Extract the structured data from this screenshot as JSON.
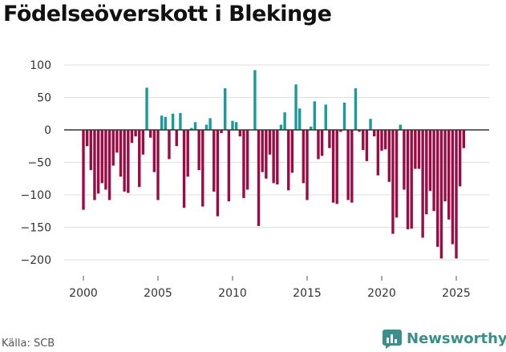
{
  "title": "Födelseöverskott i Blekinge",
  "source": "Källa: SCB",
  "brand": {
    "name": "Newsworthy",
    "icon": "bar-chart-logo-icon"
  },
  "colors": {
    "positive": "#1a9a9a",
    "negative": "#9b0c45",
    "brand": "#3a8e8c"
  },
  "chart_data": {
    "type": "bar",
    "title": "Födelseöverskott i Blekinge",
    "xlabel": "",
    "ylabel": "",
    "ylim": [
      -220,
      100
    ],
    "yticks": [
      100,
      50,
      0,
      -50,
      -100,
      -150,
      -200
    ],
    "yticklabels": [
      "100",
      "50",
      "0",
      "−50",
      "−100",
      "−150",
      "−200"
    ],
    "xticks": [
      2000,
      2005,
      2010,
      2015,
      2020,
      2025
    ],
    "xticklabels": [
      "2000",
      "2005",
      "2010",
      "2015",
      "2020",
      "2025"
    ],
    "grid": true,
    "legend": "none",
    "x": [
      2000.0,
      2000.25,
      2000.5,
      2000.75,
      2001.0,
      2001.25,
      2001.5,
      2001.75,
      2002.0,
      2002.25,
      2002.5,
      2002.75,
      2003.0,
      2003.25,
      2003.5,
      2003.75,
      2004.0,
      2004.25,
      2004.5,
      2004.75,
      2005.0,
      2005.25,
      2005.5,
      2005.75,
      2006.0,
      2006.25,
      2006.5,
      2006.75,
      2007.0,
      2007.25,
      2007.5,
      2007.75,
      2008.0,
      2008.25,
      2008.5,
      2008.75,
      2009.0,
      2009.25,
      2009.5,
      2009.75,
      2010.0,
      2010.25,
      2010.5,
      2010.75,
      2011.0,
      2011.25,
      2011.5,
      2011.75,
      2012.0,
      2012.25,
      2012.5,
      2012.75,
      2013.0,
      2013.25,
      2013.5,
      2013.75,
      2014.0,
      2014.25,
      2014.5,
      2014.75,
      2015.0,
      2015.25,
      2015.5,
      2015.75,
      2016.0,
      2016.25,
      2016.5,
      2016.75,
      2017.0,
      2017.25,
      2017.5,
      2017.75,
      2018.0,
      2018.25,
      2018.5,
      2018.75,
      2019.0,
      2019.25,
      2019.5,
      2019.75,
      2020.0,
      2020.25,
      2020.5,
      2020.75,
      2021.0,
      2021.25,
      2021.5,
      2021.75,
      2022.0,
      2022.25,
      2022.5,
      2022.75,
      2023.0,
      2023.25,
      2023.5,
      2023.75,
      2024.0,
      2024.25,
      2024.5,
      2024.75,
      2025.0,
      2025.25,
      2025.5
    ],
    "values": [
      -123,
      -25,
      -62,
      -108,
      -98,
      -82,
      -92,
      -108,
      -55,
      -35,
      -72,
      -95,
      -97,
      -20,
      -10,
      -88,
      -38,
      65,
      -12,
      -65,
      -108,
      22,
      20,
      -45,
      25,
      -25,
      26,
      -120,
      -72,
      3,
      12,
      -62,
      -118,
      8,
      18,
      -95,
      -133,
      -5,
      64,
      -110,
      14,
      12,
      -10,
      -105,
      -92,
      0,
      92,
      -148,
      -65,
      -75,
      -38,
      -82,
      -84,
      8,
      27,
      -93,
      -66,
      70,
      33,
      -82,
      -108,
      5,
      44,
      -45,
      -40,
      39,
      -28,
      -112,
      -114,
      -3,
      42,
      -108,
      -112,
      64,
      -3,
      -31,
      -48,
      17,
      -10,
      -70,
      -32,
      -30,
      -80,
      -160,
      -135,
      8,
      -92,
      -153,
      -152,
      -60,
      -60,
      -166,
      -130,
      -94,
      -125,
      -180,
      -198,
      -110,
      -138,
      -176,
      -198,
      -87,
      -28
    ]
  }
}
